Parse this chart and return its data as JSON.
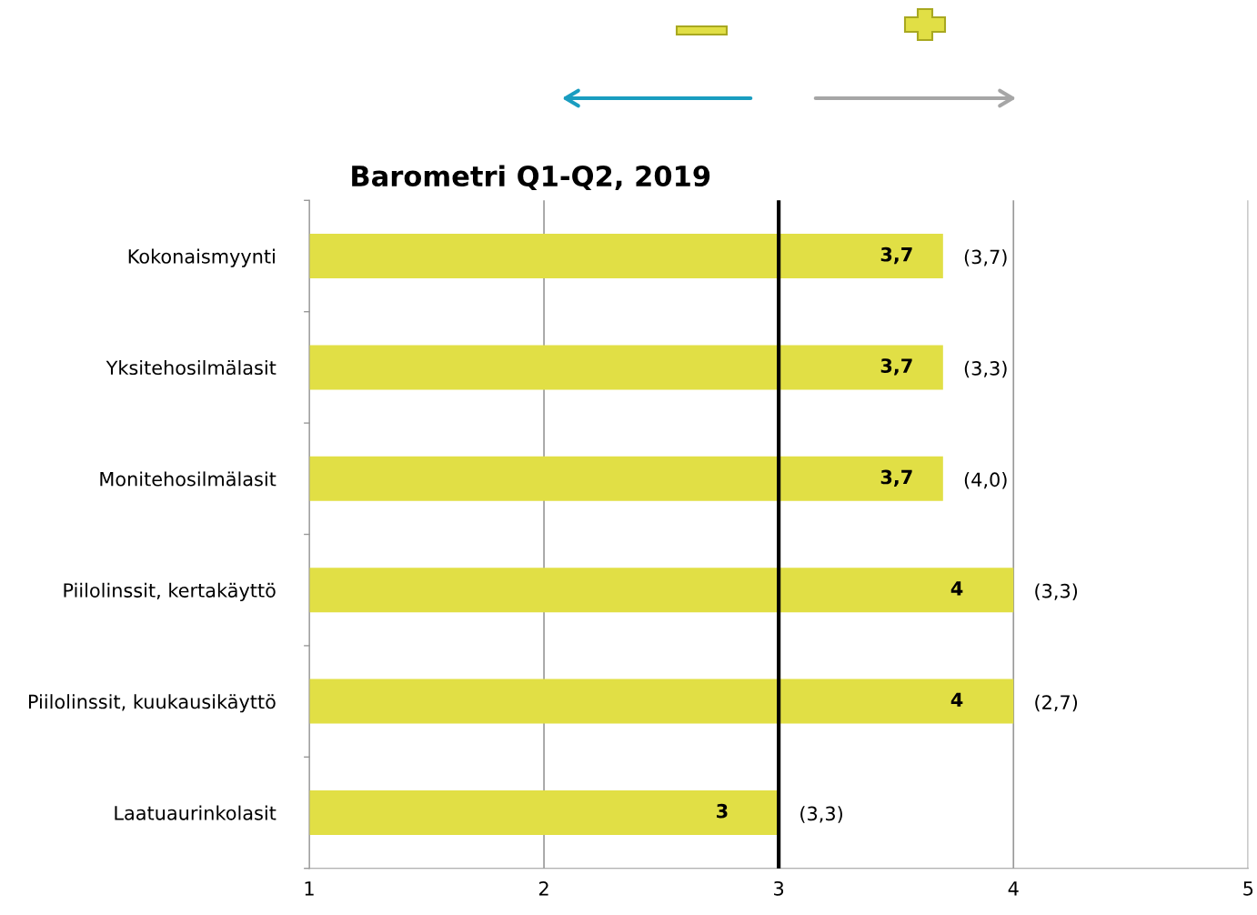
{
  "chart_data": {
    "type": "bar",
    "orientation": "horizontal",
    "title": "Barometri Q1-Q2, 2019",
    "categories": [
      "Kokonaismyynti",
      "Yksitehosilmälasit",
      "Monitehosilmälasit",
      "Piilolinssit, kertakäyttö",
      "Piilolinssit, kuukausikäyttö",
      "Laatuaurinkolasit"
    ],
    "values": [
      3.7,
      3.7,
      3.7,
      4,
      4,
      3
    ],
    "value_labels": [
      "3,7",
      "3,7",
      "3,7",
      "4",
      "4",
      "3"
    ],
    "color": "#e1df45",
    "xlim": [
      1,
      5
    ],
    "xticks": [
      1,
      2,
      3,
      4,
      5
    ],
    "grid": "x",
    "ref_lines": [
      {
        "axis": "x",
        "value": 3,
        "color": "#000000"
      }
    ],
    "annotations": [
      {
        "text": "(3,7)",
        "x": 3.7,
        "y": "Kokonaismyynti"
      },
      {
        "text": "(3,3)",
        "x": 3.7,
        "y": "Yksitehosilmälasit"
      },
      {
        "text": "(4,0)",
        "x": 3.7,
        "y": "Monitehosilmälasit"
      },
      {
        "text": "(3,3)",
        "x": 4,
        "y": "Piilolinssit, kertakäyttö"
      },
      {
        "text": "(2,7)",
        "x": 4,
        "y": "Piilolinssit, kuukausikäyttö"
      },
      {
        "text": "(3,3)",
        "x": 3,
        "y": "Laatuaurinkolasit"
      }
    ]
  }
}
